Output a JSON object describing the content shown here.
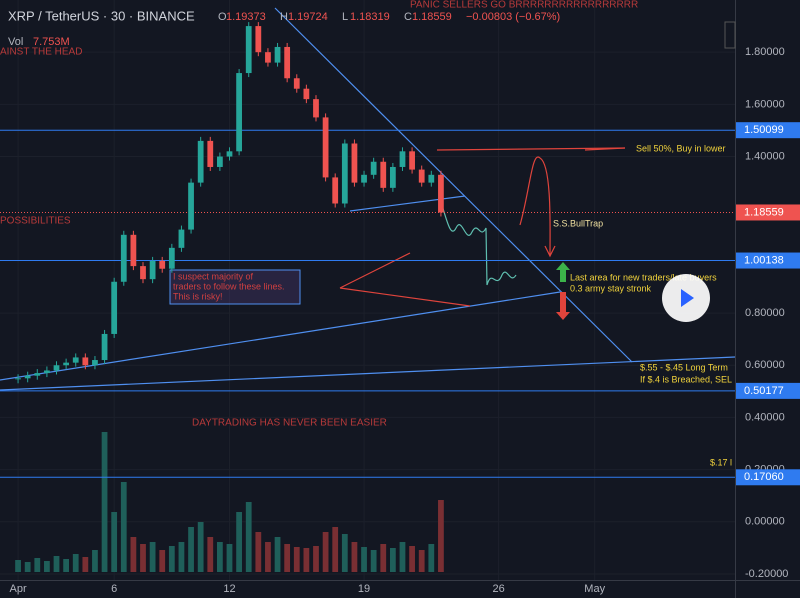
{
  "chart_data": {
    "type": "candlestick",
    "header": {
      "symbol": "XRP / TetherUS · 30 · BINANCE",
      "ohlc": [
        {
          "label": "O",
          "value": "1.19373"
        },
        {
          "label": "H",
          "value": "1.19724"
        },
        {
          "label": "L",
          "value": "1.18319"
        },
        {
          "label": "C",
          "value": "1.18559"
        }
      ],
      "change": "−0.00803 (−0.67%)",
      "volume_label": "Vol",
      "volume_value": "7.753M"
    },
    "x": [
      1,
      1.5,
      2,
      2.5,
      3,
      3.5,
      4,
      4.5,
      5,
      5.5,
      6,
      6.5,
      7,
      7.5,
      8,
      8.5,
      9,
      9.5,
      10,
      10.5,
      11,
      11.5,
      12,
      12.5,
      13,
      13.5,
      14,
      14.5,
      15,
      15.5,
      16,
      16.5,
      17,
      17.5,
      18,
      18.5,
      19,
      19.5,
      20,
      20.5,
      21,
      21.5,
      22,
      22.5,
      23
    ],
    "values": [
      0.55,
      0.56,
      0.57,
      0.58,
      0.6,
      0.61,
      0.63,
      0.6,
      0.62,
      0.72,
      0.92,
      1.1,
      0.98,
      0.93,
      1.0,
      0.97,
      1.05,
      1.12,
      1.3,
      1.46,
      1.36,
      1.4,
      1.42,
      1.72,
      1.9,
      1.8,
      1.76,
      1.82,
      1.7,
      1.66,
      1.62,
      1.55,
      1.32,
      1.22,
      1.45,
      1.3,
      1.33,
      1.38,
      1.28,
      1.36,
      1.42,
      1.35,
      1.3,
      1.33,
      1.18559
    ],
    "volume": [
      12,
      10,
      14,
      11,
      16,
      13,
      18,
      15,
      22,
      140,
      60,
      90,
      35,
      28,
      30,
      22,
      26,
      30,
      45,
      50,
      35,
      30,
      28,
      60,
      70,
      40,
      30,
      35,
      28,
      25,
      24,
      26,
      40,
      45,
      38,
      30,
      25,
      22,
      28,
      24,
      30,
      26,
      22,
      28,
      72
    ],
    "up_color": "#26a69a",
    "down_color": "#ef5350",
    "volume_up_color": "#1f5f5a",
    "volume_down_color": "#7a2f33",
    "volume_ylim": [
      0,
      200
    ],
    "xlim": [
      0.06,
      38.3
    ],
    "xticks": [
      {
        "value": 1,
        "label": "Apr"
      },
      {
        "value": 6,
        "label": "6"
      },
      {
        "value": 12,
        "label": "12"
      },
      {
        "value": 19,
        "label": "19"
      },
      {
        "value": 26,
        "label": "26"
      },
      {
        "value": 31,
        "label": "May"
      }
    ],
    "ylim": [
      -0.2231,
      2.0
    ],
    "yticks": [
      {
        "value": 1.8,
        "label": "1.80000"
      },
      {
        "value": 1.6,
        "label": "1.60000"
      },
      {
        "value": 1.4,
        "label": "1.40000"
      },
      {
        "value": 0.8,
        "label": "0.80000"
      },
      {
        "value": 0.6,
        "label": "0.60000"
      },
      {
        "value": 0.4,
        "label": "0.40000"
      },
      {
        "value": 0.2,
        "label": "0.20000"
      },
      {
        "value": 0,
        "label": "0.00000"
      },
      {
        "value": -0.2,
        "label": "-0.20000"
      }
    ],
    "levels": [
      1.50099,
      1.00138,
      0.50177,
      {
        "value": 0.1706,
        "label": "0.17060"
      }
    ],
    "level_color": "#2f7bf0",
    "last_price": 1.18559,
    "last_price_color": "#ef5350",
    "annotations": [
      "PANIC SELLERS GO BRRRRRRRRRRRRRRRRR",
      "AINST THE HEAD",
      "POSSIBILITIES",
      "I suspect majority of",
      "traders to follow these lines.",
      "This is risky!",
      "DAYTRADING HAS NEVER BEEN EASIER",
      "Sell 50%, Buy in lower",
      "S.S.BullTrap",
      "Last area for new traders/late buyers",
      "0.3 army stay stronk",
      "$.55 - $.45 Long Term",
      "If $.4 is Breached, SEL",
      "$.17 l"
    ]
  }
}
